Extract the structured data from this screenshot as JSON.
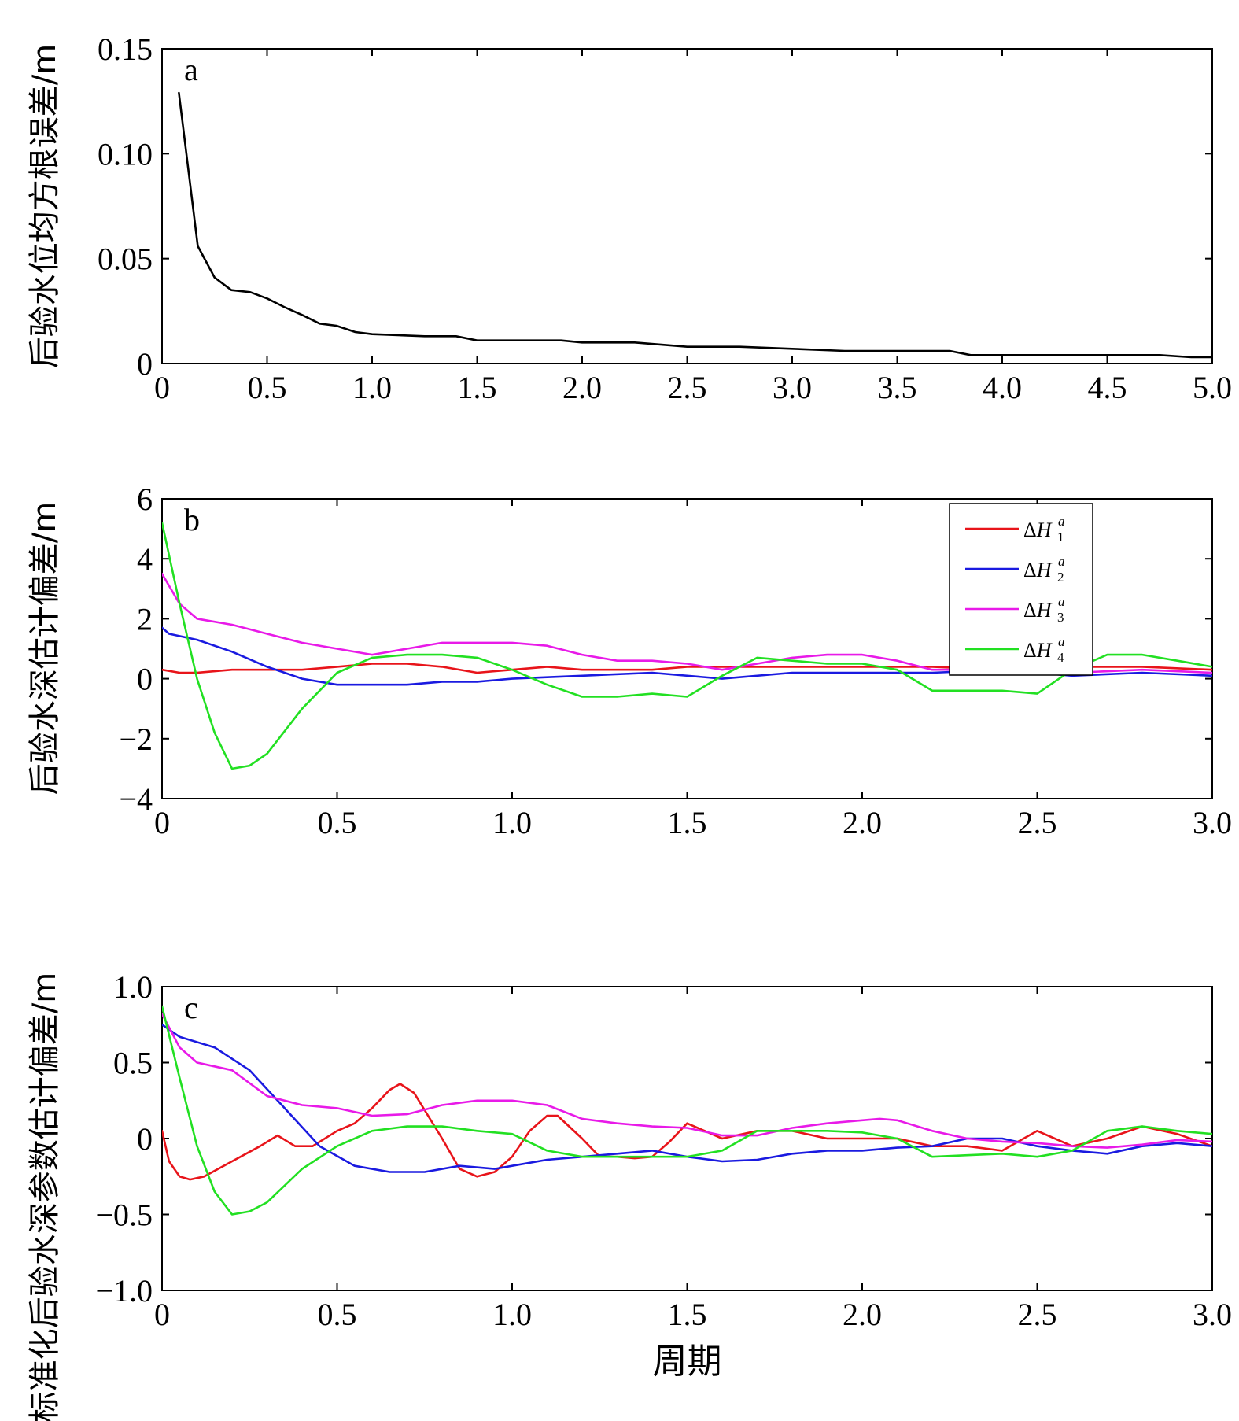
{
  "chart_data": [
    {
      "type": "line",
      "panel_label": "a",
      "ylabel": "后验水位均方根误差/m",
      "xlabel": "",
      "xlim": [
        0,
        5
      ],
      "ylim": [
        0,
        0.15
      ],
      "xticks": [
        "0",
        "0.5",
        "1.0",
        "1.5",
        "2.0",
        "2.5",
        "3.0",
        "3.5",
        "4.0",
        "4.5",
        "5.0"
      ],
      "yticks": [
        "0",
        "0.05",
        "0.10",
        "0.15"
      ],
      "grid": false,
      "series": [
        {
          "color": "#000000",
          "x": [
            0.08,
            0.17,
            0.25,
            0.33,
            0.42,
            0.5,
            0.58,
            0.67,
            0.75,
            0.83,
            0.92,
            1.0,
            1.25,
            1.4,
            1.5,
            1.75,
            1.9,
            2.0,
            2.25,
            2.5,
            2.75,
            3.0,
            3.25,
            3.5,
            3.75,
            3.85,
            4.0,
            4.25,
            4.5,
            4.75,
            4.9,
            5.0
          ],
          "y": [
            0.129,
            0.056,
            0.041,
            0.035,
            0.034,
            0.031,
            0.027,
            0.023,
            0.019,
            0.018,
            0.015,
            0.014,
            0.013,
            0.013,
            0.011,
            0.011,
            0.011,
            0.01,
            0.01,
            0.008,
            0.008,
            0.007,
            0.006,
            0.006,
            0.006,
            0.004,
            0.004,
            0.004,
            0.004,
            0.004,
            0.003,
            0.003
          ]
        }
      ]
    },
    {
      "type": "line",
      "panel_label": "b",
      "ylabel": "后验水深估计偏差/m",
      "xlabel": "",
      "xlim": [
        0,
        3
      ],
      "ylim": [
        -4,
        6
      ],
      "xticks": [
        "0",
        "0.5",
        "1.0",
        "1.5",
        "2.0",
        "2.5",
        "3.0"
      ],
      "yticks": [
        "−4",
        "−2",
        "0",
        "2",
        "4",
        "6"
      ],
      "grid": false,
      "legend": "top-right",
      "series": [
        {
          "name": "ΔH",
          "sub": "1",
          "sup": "a",
          "color": "#e8141a",
          "x": [
            0,
            0.05,
            0.1,
            0.2,
            0.3,
            0.4,
            0.5,
            0.6,
            0.7,
            0.8,
            0.9,
            1.0,
            1.1,
            1.2,
            1.3,
            1.4,
            1.5,
            1.6,
            1.7,
            1.8,
            1.9,
            2.0,
            2.2,
            2.4,
            2.6,
            2.8,
            3.0
          ],
          "y": [
            0.3,
            0.2,
            0.2,
            0.3,
            0.3,
            0.3,
            0.4,
            0.5,
            0.5,
            0.4,
            0.2,
            0.3,
            0.4,
            0.3,
            0.3,
            0.3,
            0.4,
            0.4,
            0.4,
            0.4,
            0.4,
            0.4,
            0.4,
            0.3,
            0.4,
            0.4,
            0.3
          ]
        },
        {
          "name": "ΔH",
          "sub": "2",
          "sup": "a",
          "color": "#1a1ae0",
          "x": [
            0,
            0.02,
            0.1,
            0.2,
            0.3,
            0.4,
            0.5,
            0.6,
            0.7,
            0.8,
            0.9,
            1.0,
            1.2,
            1.4,
            1.6,
            1.8,
            2.0,
            2.2,
            2.4,
            2.6,
            2.8,
            3.0
          ],
          "y": [
            1.7,
            1.5,
            1.3,
            0.9,
            0.4,
            0.0,
            -0.2,
            -0.2,
            -0.2,
            -0.1,
            -0.1,
            0.0,
            0.1,
            0.2,
            0.0,
            0.2,
            0.2,
            0.2,
            0.3,
            0.1,
            0.2,
            0.1
          ]
        },
        {
          "name": "ΔH",
          "sub": "3",
          "sup": "a",
          "color": "#e81ae8",
          "x": [
            0,
            0.05,
            0.1,
            0.2,
            0.3,
            0.4,
            0.5,
            0.6,
            0.7,
            0.8,
            0.9,
            1.0,
            1.1,
            1.2,
            1.3,
            1.4,
            1.5,
            1.6,
            1.7,
            1.8,
            1.9,
            2.0,
            2.1,
            2.2,
            2.4,
            2.6,
            2.8,
            3.0
          ],
          "y": [
            3.5,
            2.5,
            2.0,
            1.8,
            1.5,
            1.2,
            1.0,
            0.8,
            1.0,
            1.2,
            1.2,
            1.2,
            1.1,
            0.8,
            0.6,
            0.6,
            0.5,
            0.3,
            0.5,
            0.7,
            0.8,
            0.8,
            0.6,
            0.3,
            0.3,
            0.2,
            0.3,
            0.2
          ]
        },
        {
          "name": "ΔH",
          "sub": "4",
          "sup": "a",
          "color": "#22e022",
          "x": [
            0,
            0.05,
            0.1,
            0.15,
            0.2,
            0.25,
            0.3,
            0.4,
            0.5,
            0.6,
            0.7,
            0.8,
            0.9,
            1.0,
            1.1,
            1.2,
            1.3,
            1.4,
            1.5,
            1.6,
            1.7,
            1.8,
            1.9,
            2.0,
            2.1,
            2.2,
            2.3,
            2.4,
            2.5,
            2.6,
            2.7,
            2.8,
            2.9,
            3.0
          ],
          "y": [
            5.2,
            2.5,
            0.0,
            -1.8,
            -3.0,
            -2.9,
            -2.5,
            -1.0,
            0.2,
            0.7,
            0.8,
            0.8,
            0.7,
            0.3,
            -0.2,
            -0.6,
            -0.6,
            -0.5,
            -0.6,
            0.1,
            0.7,
            0.6,
            0.5,
            0.5,
            0.3,
            -0.4,
            -0.4,
            -0.4,
            -0.5,
            0.3,
            0.8,
            0.8,
            0.6,
            0.4
          ]
        }
      ]
    },
    {
      "type": "line",
      "panel_label": "c",
      "ylabel": "标准化后验水深参数估计偏差/m",
      "xlabel": "周期",
      "xlim": [
        0,
        3
      ],
      "ylim": [
        -1,
        1
      ],
      "xticks": [
        "0",
        "0.5",
        "1.0",
        "1.5",
        "2.0",
        "2.5",
        "3.0"
      ],
      "yticks": [
        "−1.0",
        "−0.5",
        "0",
        "0.5",
        "1.0"
      ],
      "grid": false,
      "series": [
        {
          "color": "#e8141a",
          "x": [
            0,
            0.02,
            0.05,
            0.08,
            0.12,
            0.2,
            0.28,
            0.33,
            0.38,
            0.43,
            0.5,
            0.55,
            0.6,
            0.65,
            0.68,
            0.72,
            0.8,
            0.85,
            0.9,
            0.95,
            1.0,
            1.05,
            1.1,
            1.13,
            1.2,
            1.25,
            1.3,
            1.35,
            1.4,
            1.45,
            1.5,
            1.55,
            1.6,
            1.7,
            1.8,
            1.9,
            2.0,
            2.1,
            2.2,
            2.3,
            2.4,
            2.5,
            2.55,
            2.6,
            2.7,
            2.8,
            2.9,
            3.0
          ],
          "y": [
            0.05,
            -0.15,
            -0.25,
            -0.27,
            -0.25,
            -0.15,
            -0.05,
            0.02,
            -0.05,
            -0.05,
            0.05,
            0.1,
            0.2,
            0.32,
            0.36,
            0.3,
            0.0,
            -0.2,
            -0.25,
            -0.22,
            -0.12,
            0.05,
            0.15,
            0.15,
            0.0,
            -0.12,
            -0.12,
            -0.13,
            -0.12,
            -0.02,
            0.1,
            0.05,
            0.0,
            0.05,
            0.05,
            0.0,
            0.0,
            0.0,
            -0.05,
            -0.05,
            -0.08,
            0.05,
            0.0,
            -0.05,
            0.0,
            0.08,
            0.03,
            -0.05
          ]
        },
        {
          "color": "#1a1ae0",
          "x": [
            0,
            0.05,
            0.15,
            0.25,
            0.35,
            0.45,
            0.55,
            0.65,
            0.75,
            0.85,
            0.95,
            1.0,
            1.1,
            1.2,
            1.3,
            1.4,
            1.5,
            1.6,
            1.7,
            1.8,
            1.9,
            2.0,
            2.1,
            2.2,
            2.3,
            2.4,
            2.5,
            2.6,
            2.7,
            2.8,
            2.9,
            3.0
          ],
          "y": [
            0.75,
            0.67,
            0.6,
            0.45,
            0.2,
            -0.05,
            -0.18,
            -0.22,
            -0.22,
            -0.18,
            -0.2,
            -0.18,
            -0.14,
            -0.12,
            -0.1,
            -0.08,
            -0.12,
            -0.15,
            -0.14,
            -0.1,
            -0.08,
            -0.08,
            -0.06,
            -0.05,
            0.0,
            0.0,
            -0.05,
            -0.08,
            -0.1,
            -0.05,
            -0.03,
            -0.05
          ]
        },
        {
          "color": "#e81ae8",
          "x": [
            0,
            0.05,
            0.1,
            0.2,
            0.3,
            0.4,
            0.5,
            0.6,
            0.7,
            0.8,
            0.9,
            1.0,
            1.1,
            1.2,
            1.3,
            1.4,
            1.5,
            1.6,
            1.7,
            1.8,
            1.9,
            2.0,
            2.05,
            2.1,
            2.2,
            2.3,
            2.4,
            2.5,
            2.6,
            2.7,
            2.8,
            2.9,
            3.0
          ],
          "y": [
            0.82,
            0.6,
            0.5,
            0.45,
            0.28,
            0.22,
            0.2,
            0.15,
            0.16,
            0.22,
            0.25,
            0.25,
            0.22,
            0.13,
            0.1,
            0.08,
            0.07,
            0.02,
            0.02,
            0.07,
            0.1,
            0.12,
            0.13,
            0.12,
            0.05,
            0.0,
            -0.02,
            -0.03,
            -0.05,
            -0.06,
            -0.04,
            -0.01,
            -0.02
          ]
        },
        {
          "color": "#22e022",
          "x": [
            0,
            0.05,
            0.1,
            0.15,
            0.2,
            0.25,
            0.3,
            0.4,
            0.5,
            0.6,
            0.7,
            0.8,
            0.9,
            1.0,
            1.1,
            1.2,
            1.3,
            1.4,
            1.5,
            1.6,
            1.7,
            1.8,
            1.9,
            2.0,
            2.1,
            2.2,
            2.3,
            2.4,
            2.5,
            2.6,
            2.7,
            2.8,
            2.9,
            3.0
          ],
          "y": [
            0.87,
            0.4,
            -0.05,
            -0.35,
            -0.5,
            -0.48,
            -0.42,
            -0.2,
            -0.05,
            0.05,
            0.08,
            0.08,
            0.05,
            0.03,
            -0.08,
            -0.12,
            -0.12,
            -0.12,
            -0.12,
            -0.08,
            0.05,
            0.05,
            0.05,
            0.04,
            0.0,
            -0.12,
            -0.11,
            -0.1,
            -0.12,
            -0.08,
            0.05,
            0.08,
            0.05,
            0.03
          ]
        }
      ]
    }
  ]
}
